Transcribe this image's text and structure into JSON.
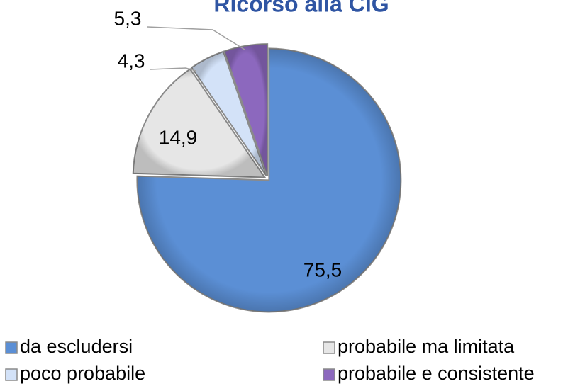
{
  "chart_data": {
    "type": "pie",
    "title": "Ricorso alla CIG",
    "categories": [
      "da escludersi",
      "probabile ma limitata",
      "poco probabile",
      "probabile e consistente"
    ],
    "values": [
      75.5,
      14.9,
      4.3,
      5.3
    ],
    "value_labels": [
      "75,5",
      "14,9",
      "4,3",
      "5,3"
    ],
    "colors": [
      "#5b8fd5",
      "#e6e6e6",
      "#d3e2f8",
      "#8c68be"
    ],
    "legend": "bottom"
  }
}
